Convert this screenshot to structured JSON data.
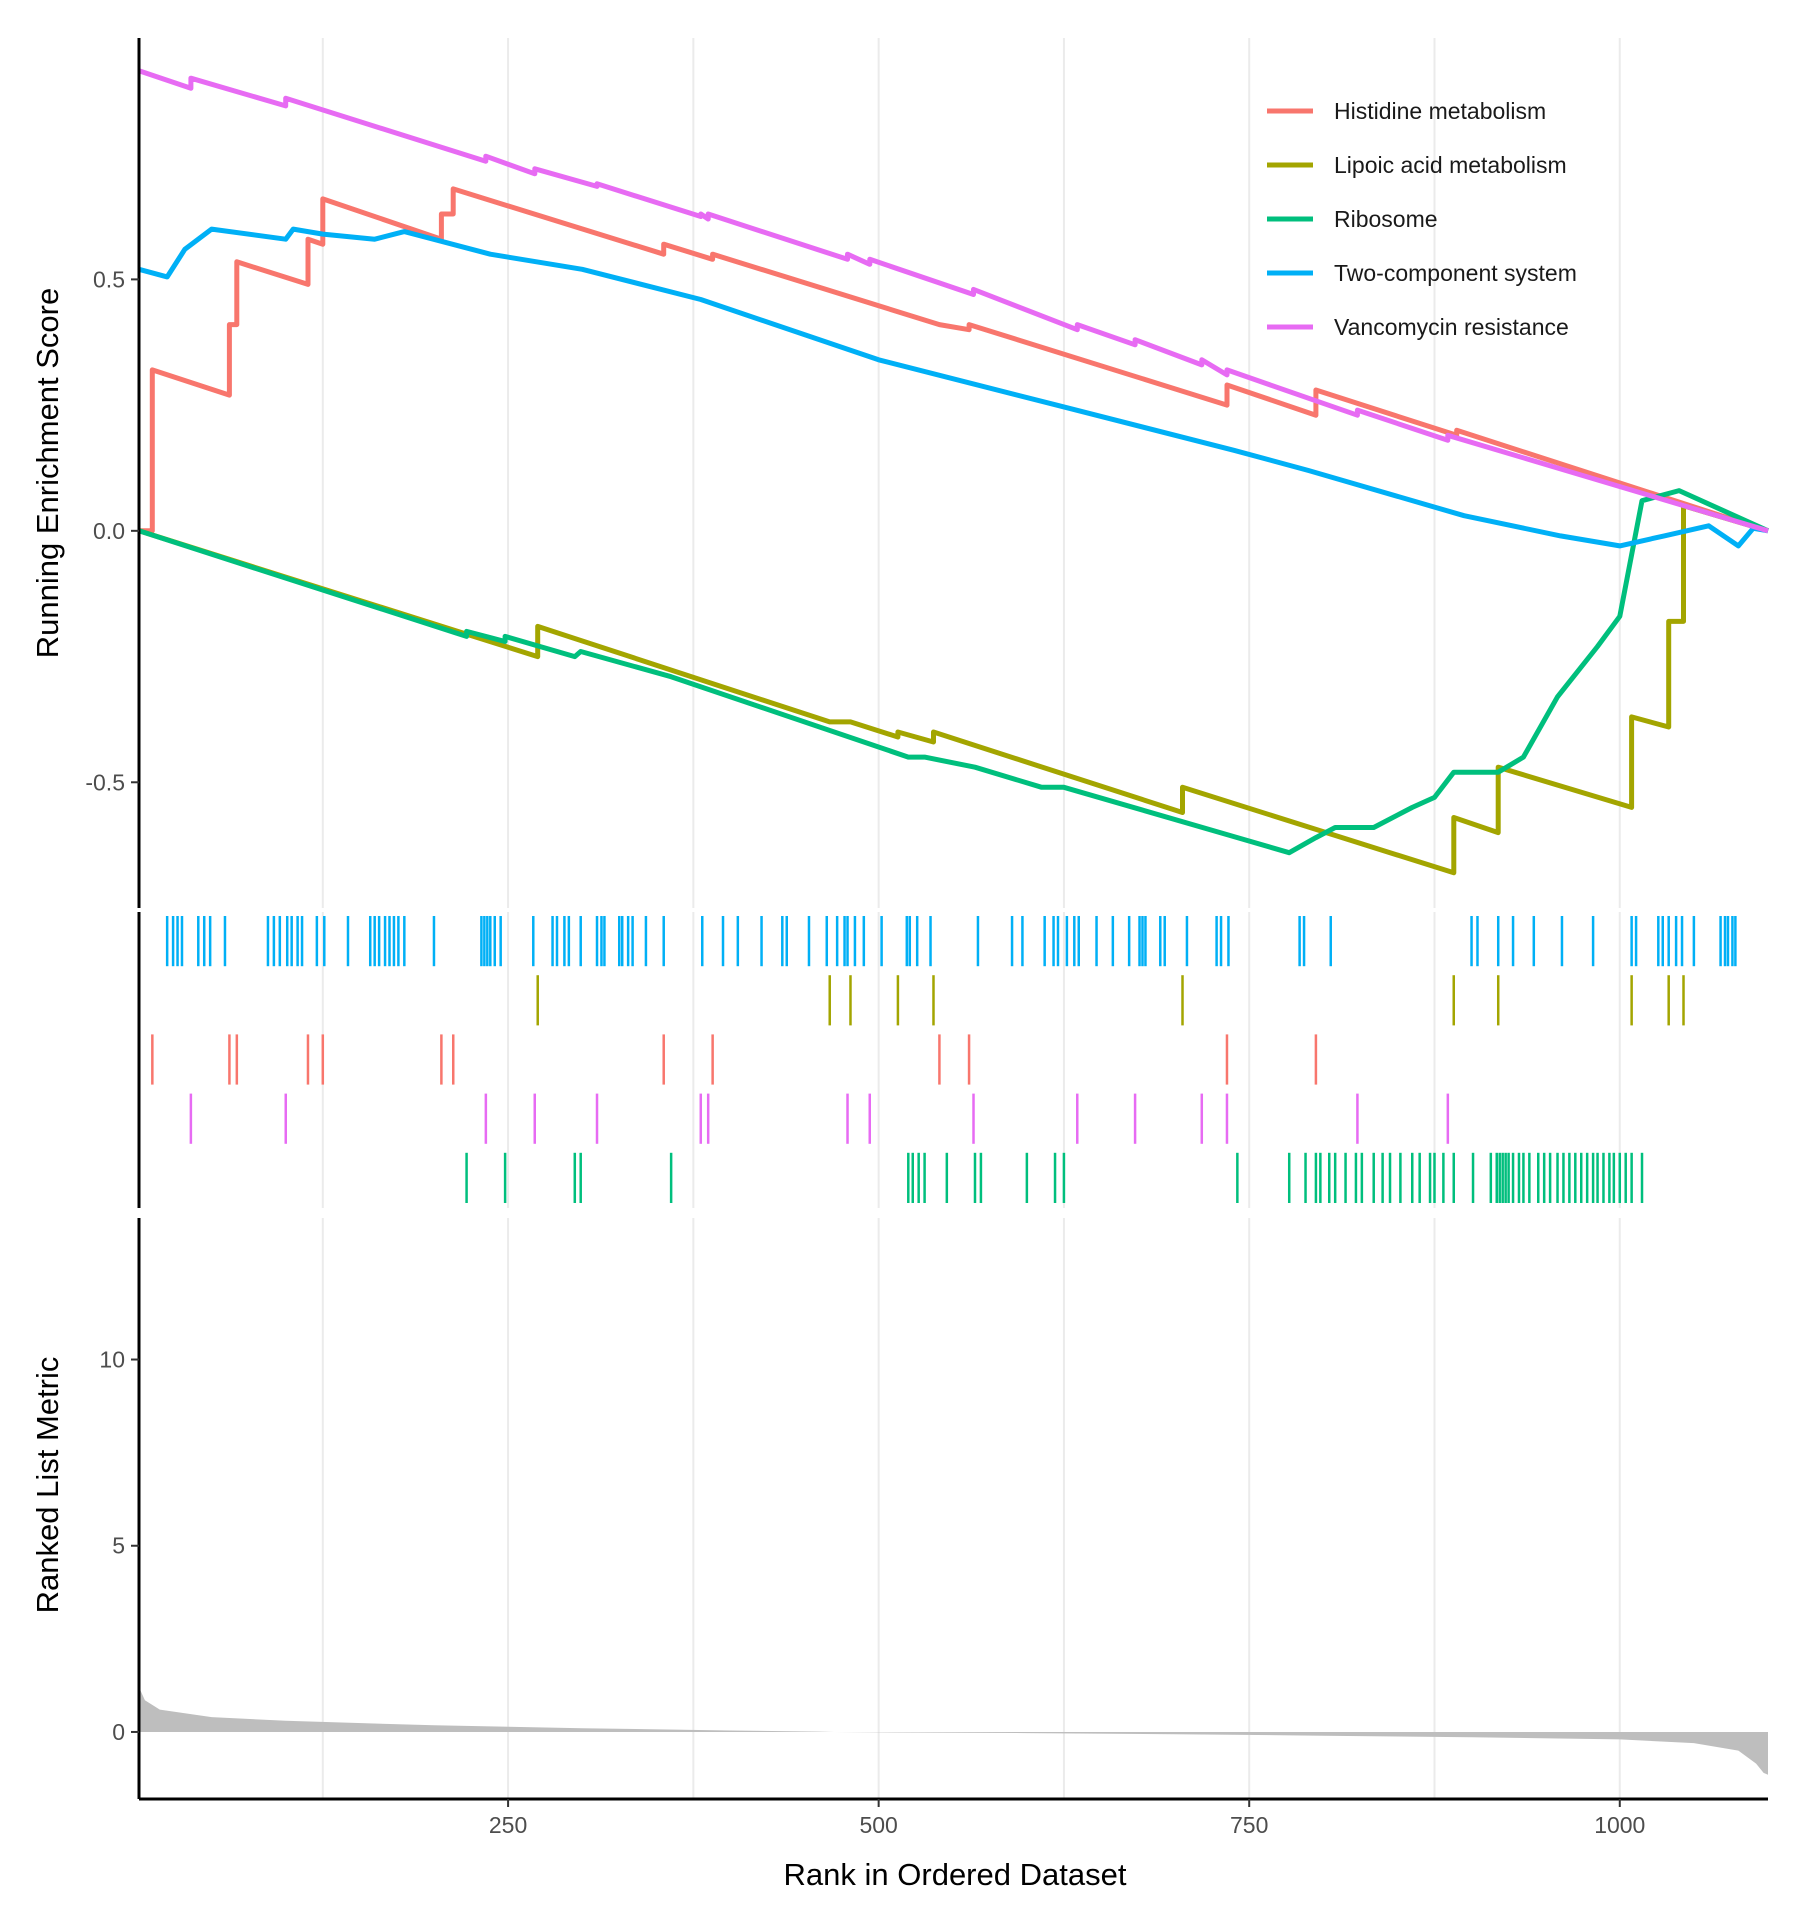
{
  "chart_data": {
    "type": "line",
    "title": "",
    "x_label": "Rank in Ordered Dataset",
    "x_range": [
      1,
      1100
    ],
    "x_ticks": [
      250,
      500,
      750,
      1000
    ],
    "x_gridlines": [
      125,
      375,
      625,
      875
    ],
    "enrichment_panel": {
      "y_label": "Running Enrichment Score",
      "y_range": [
        -0.75,
        0.98
      ],
      "y_ticks": [
        {
          "value": 0.5,
          "label": "0.5"
        },
        {
          "value": 0.0,
          "label": "0.0"
        },
        {
          "value": -0.5,
          "label": "-0.5"
        }
      ],
      "legend_position": "top-right",
      "series": [
        {
          "name": "Histidine metabolism",
          "color": "#F8766D",
          "points": [
            [
              1,
              0
            ],
            [
              10,
              0
            ],
            [
              10,
              0.32
            ],
            [
              62,
              0.27
            ],
            [
              62,
              0.41
            ],
            [
              67,
              0.41
            ],
            [
              67,
              0.535
            ],
            [
              115,
              0.49
            ],
            [
              115,
              0.58
            ],
            [
              125,
              0.57
            ],
            [
              125,
              0.66
            ],
            [
              205,
              0.58
            ],
            [
              205,
              0.63
            ],
            [
              213,
              0.63
            ],
            [
              213,
              0.68
            ],
            [
              355,
              0.55
            ],
            [
              355,
              0.57
            ],
            [
              388,
              0.54
            ],
            [
              388,
              0.55
            ],
            [
              541,
              0.41
            ],
            [
              541,
              0.41
            ],
            [
              561,
              0.4
            ],
            [
              561,
              0.41
            ],
            [
              735,
              0.25
            ],
            [
              735,
              0.29
            ],
            [
              795,
              0.23
            ],
            [
              795,
              0.28
            ],
            [
              890,
              0.19
            ],
            [
              890,
              0.2
            ],
            [
              1100,
              0
            ]
          ]
        },
        {
          "name": "Lipoic acid metabolism",
          "color": "#A3A500",
          "points": [
            [
              1,
              0
            ],
            [
              270,
              -0.25
            ],
            [
              270,
              -0.19
            ],
            [
              467,
              -0.38
            ],
            [
              467,
              -0.38
            ],
            [
              481,
              -0.38
            ],
            [
              513,
              -0.41
            ],
            [
              513,
              -0.4
            ],
            [
              537,
              -0.42
            ],
            [
              537,
              -0.4
            ],
            [
              705,
              -0.56
            ],
            [
              705,
              -0.51
            ],
            [
              888,
              -0.68
            ],
            [
              888,
              -0.57
            ],
            [
              918,
              -0.6
            ],
            [
              918,
              -0.47
            ],
            [
              1008,
              -0.55
            ],
            [
              1008,
              -0.37
            ],
            [
              1033,
              -0.39
            ],
            [
              1033,
              -0.18
            ],
            [
              1043,
              -0.18
            ],
            [
              1043,
              0.05
            ],
            [
              1100,
              0
            ]
          ]
        },
        {
          "name": "Ribosome",
          "color": "#00BF7D",
          "points": [
            [
              1,
              0
            ],
            [
              222,
              -0.21
            ],
            [
              222,
              -0.2
            ],
            [
              248,
              -0.22
            ],
            [
              248,
              -0.21
            ],
            [
              295,
              -0.25
            ],
            [
              299,
              -0.24
            ],
            [
              360,
              -0.29
            ],
            [
              520,
              -0.45
            ],
            [
              531,
              -0.45
            ],
            [
              565,
              -0.47
            ],
            [
              610,
              -0.51
            ],
            [
              625,
              -0.51
            ],
            [
              742,
              -0.61
            ],
            [
              777,
              -0.64
            ],
            [
              795,
              -0.61
            ],
            [
              808,
              -0.59
            ],
            [
              834,
              -0.59
            ],
            [
              860,
              -0.55
            ],
            [
              875,
              -0.53
            ],
            [
              888,
              -0.48
            ],
            [
              918,
              -0.48
            ],
            [
              935,
              -0.45
            ],
            [
              958,
              -0.33
            ],
            [
              985,
              -0.23
            ],
            [
              1000,
              -0.17
            ],
            [
              1015,
              0.06
            ],
            [
              1040,
              0.08
            ],
            [
              1100,
              0
            ]
          ]
        },
        {
          "name": "Two-component system",
          "color": "#00B0F6",
          "points": [
            [
              1,
              0.52
            ],
            [
              20,
              0.505
            ],
            [
              32,
              0.56
            ],
            [
              50,
              0.6
            ],
            [
              100,
              0.58
            ],
            [
              105,
              0.6
            ],
            [
              125,
              0.59
            ],
            [
              160,
              0.58
            ],
            [
              180,
              0.595
            ],
            [
              238,
              0.55
            ],
            [
              300,
              0.52
            ],
            [
              380,
              0.46
            ],
            [
              500,
              0.34
            ],
            [
              620,
              0.25
            ],
            [
              740,
              0.16
            ],
            [
              790,
              0.12
            ],
            [
              895,
              0.03
            ],
            [
              960,
              -0.01
            ],
            [
              1000,
              -0.03
            ],
            [
              1030,
              -0.01
            ],
            [
              1060,
              0.01
            ],
            [
              1080,
              -0.03
            ],
            [
              1090,
              0.005
            ],
            [
              1100,
              0
            ]
          ]
        },
        {
          "name": "Vancomycin resistance",
          "color": "#E76BF3",
          "points": [
            [
              1,
              0.915
            ],
            [
              36,
              0.88
            ],
            [
              36,
              0.9
            ],
            [
              100,
              0.845
            ],
            [
              100,
              0.86
            ],
            [
              235,
              0.735
            ],
            [
              235,
              0.745
            ],
            [
              268,
              0.71
            ],
            [
              268,
              0.72
            ],
            [
              310,
              0.685
            ],
            [
              310,
              0.69
            ],
            [
              380,
              0.625
            ],
            [
              380,
              0.63
            ],
            [
              385,
              0.62
            ],
            [
              385,
              0.63
            ],
            [
              479,
              0.54
            ],
            [
              479,
              0.55
            ],
            [
              494,
              0.53
            ],
            [
              494,
              0.54
            ],
            [
              564,
              0.47
            ],
            [
              564,
              0.48
            ],
            [
              634,
              0.4
            ],
            [
              634,
              0.41
            ],
            [
              673,
              0.37
            ],
            [
              673,
              0.38
            ],
            [
              718,
              0.33
            ],
            [
              718,
              0.34
            ],
            [
              735,
              0.31
            ],
            [
              735,
              0.32
            ],
            [
              823,
              0.23
            ],
            [
              823,
              0.24
            ],
            [
              884,
              0.18
            ],
            [
              884,
              0.19
            ],
            [
              1100,
              0
            ]
          ]
        }
      ]
    },
    "hit_rows": [
      {
        "name": "Two-component system",
        "color": "#00B0F6",
        "hits": [
          20,
          24,
          27,
          30,
          41,
          45,
          49,
          59,
          88,
          92,
          96,
          101,
          104,
          108,
          111,
          121,
          126,
          142,
          157,
          160,
          163,
          167,
          170,
          173,
          176,
          180,
          200,
          232,
          234,
          236,
          238,
          241,
          245,
          267,
          280,
          283,
          288,
          291,
          299,
          310,
          313,
          315,
          325,
          327,
          331,
          334,
          343,
          355,
          381,
          395,
          405,
          421,
          435,
          438,
          453,
          465,
          472,
          477,
          479,
          484,
          490,
          502,
          519,
          521,
          526,
          535,
          567,
          590,
          597,
          612,
          618,
          621,
          627,
          632,
          635,
          647,
          658,
          669,
          676,
          678,
          680,
          690,
          693,
          708,
          728,
          731,
          736,
          784,
          787,
          805,
          900,
          904,
          918,
          928,
          942,
          961,
          982,
          1008,
          1011,
          1026,
          1029,
          1033,
          1038,
          1042,
          1050,
          1068,
          1071,
          1073,
          1076,
          1078
        ]
      },
      {
        "name": "Lipoic acid metabolism",
        "color": "#A3A500",
        "hits": [
          270,
          467,
          481,
          513,
          537,
          705,
          888,
          918,
          1008,
          1033,
          1043
        ]
      },
      {
        "name": "Histidine metabolism",
        "color": "#F8766D",
        "hits": [
          10,
          62,
          67,
          115,
          125,
          205,
          213,
          355,
          388,
          541,
          561,
          735,
          795
        ]
      },
      {
        "name": "Vancomycin resistance",
        "color": "#E76BF3",
        "hits": [
          36,
          100,
          235,
          268,
          310,
          380,
          385,
          479,
          494,
          564,
          634,
          673,
          718,
          735,
          823,
          884
        ]
      },
      {
        "name": "Ribosome",
        "color": "#00BF7D",
        "hits": [
          222,
          248,
          295,
          299,
          360,
          520,
          523,
          527,
          531,
          546,
          565,
          569,
          600,
          619,
          625,
          742,
          777,
          788,
          795,
          798,
          804,
          808,
          815,
          822,
          826,
          834,
          840,
          845,
          852,
          860,
          865,
          872,
          875,
          881,
          888,
          901,
          913,
          917,
          919,
          921,
          923,
          925,
          928,
          932,
          935,
          939,
          945,
          949,
          953,
          958,
          962,
          966,
          970,
          974,
          978,
          982,
          985,
          989,
          993,
          996,
          1000,
          1004,
          1008,
          1015
        ]
      }
    ],
    "metric_panel": {
      "y_label": "Ranked List Metric",
      "y_range": [
        -1.8,
        13.8
      ],
      "y_ticks": [
        {
          "value": 10,
          "label": "10"
        },
        {
          "value": 5,
          "label": "5"
        },
        {
          "value": 0,
          "label": "0"
        }
      ],
      "fill_color": "#BEBEBE",
      "profile": [
        [
          1,
          1.2
        ],
        [
          5,
          0.85
        ],
        [
          15,
          0.6
        ],
        [
          50,
          0.4
        ],
        [
          100,
          0.3
        ],
        [
          200,
          0.18
        ],
        [
          300,
          0.1
        ],
        [
          400,
          0.04
        ],
        [
          460,
          0.01
        ],
        [
          470,
          0
        ],
        [
          600,
          -0.03
        ],
        [
          700,
          -0.06
        ],
        [
          800,
          -0.1
        ],
        [
          900,
          -0.14
        ],
        [
          1000,
          -0.2
        ],
        [
          1050,
          -0.3
        ],
        [
          1080,
          -0.5
        ],
        [
          1092,
          -0.85
        ],
        [
          1097,
          -1.1
        ],
        [
          1100,
          -1.15
        ]
      ]
    }
  }
}
